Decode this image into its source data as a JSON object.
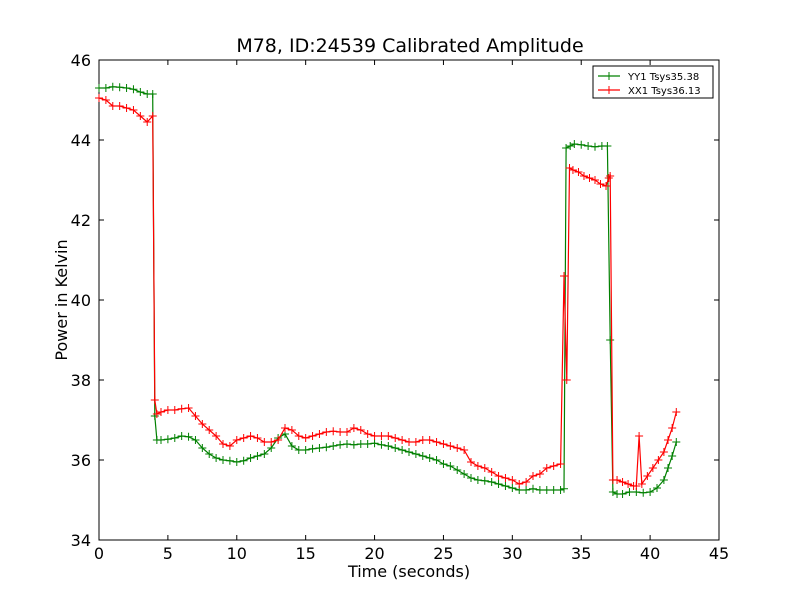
{
  "chart_data": {
    "type": "line",
    "title": "M78, ID:24539 Calibrated Amplitude",
    "xlabel": "Time (seconds)",
    "ylabel": "Power in Kelvin",
    "xlim": [
      0,
      45
    ],
    "ylim": [
      34,
      46
    ],
    "xticks": [
      0,
      5,
      10,
      15,
      20,
      25,
      30,
      35,
      40,
      45
    ],
    "yticks": [
      34,
      36,
      38,
      40,
      42,
      44,
      46
    ],
    "grid": false,
    "legend_position": "top-right",
    "marker": "+",
    "series": [
      {
        "name": "YY1 Tsys35.38",
        "color": "#008000",
        "x": [
          0.0,
          0.5,
          1.0,
          1.5,
          2.0,
          2.5,
          3.0,
          3.5,
          3.9,
          4.05,
          4.2,
          4.5,
          5.0,
          5.5,
          6.0,
          6.5,
          7.0,
          7.5,
          8.0,
          8.5,
          9.0,
          9.5,
          10.0,
          10.5,
          11.0,
          11.5,
          12.0,
          12.5,
          13.0,
          13.5,
          14.0,
          14.5,
          15.0,
          15.5,
          16.0,
          16.5,
          17.0,
          17.5,
          18.0,
          18.5,
          19.0,
          19.5,
          20.0,
          20.5,
          21.0,
          21.5,
          22.0,
          22.5,
          23.0,
          23.5,
          24.0,
          24.5,
          25.0,
          25.5,
          26.0,
          26.5,
          27.0,
          27.5,
          28.0,
          28.5,
          29.0,
          29.5,
          30.0,
          30.5,
          31.0,
          31.5,
          32.0,
          32.5,
          33.0,
          33.5,
          33.75,
          33.9,
          34.2,
          34.5,
          35.0,
          35.5,
          36.0,
          36.5,
          36.9,
          37.1,
          37.3,
          37.6,
          38.0,
          38.5,
          39.0,
          39.5,
          40.0,
          40.5,
          41.0,
          41.3,
          41.6,
          41.9
        ],
        "values": [
          45.3,
          45.3,
          45.33,
          45.32,
          45.3,
          45.27,
          45.2,
          45.15,
          45.15,
          37.1,
          36.5,
          36.5,
          36.52,
          36.55,
          36.6,
          36.58,
          36.5,
          36.3,
          36.15,
          36.05,
          36.0,
          35.98,
          35.95,
          35.98,
          36.05,
          36.1,
          36.15,
          36.3,
          36.55,
          36.65,
          36.35,
          36.25,
          36.25,
          36.28,
          36.3,
          36.32,
          36.35,
          36.38,
          36.4,
          36.38,
          36.4,
          36.4,
          36.42,
          36.38,
          36.35,
          36.3,
          36.25,
          36.2,
          36.15,
          36.1,
          36.05,
          36.0,
          35.9,
          35.85,
          35.75,
          35.65,
          35.55,
          35.5,
          35.48,
          35.45,
          35.4,
          35.35,
          35.3,
          35.25,
          35.25,
          35.28,
          35.25,
          35.25,
          35.25,
          35.25,
          35.28,
          43.8,
          43.85,
          43.9,
          43.88,
          43.85,
          43.83,
          43.85,
          43.85,
          39.0,
          35.2,
          35.15,
          35.15,
          35.2,
          35.2,
          35.18,
          35.2,
          35.3,
          35.5,
          35.8,
          36.1,
          36.45
        ]
      },
      {
        "name": "XX1 Tsys36.13",
        "color": "#ff0000",
        "x": [
          0.0,
          0.5,
          1.0,
          1.5,
          2.0,
          2.5,
          3.0,
          3.5,
          3.9,
          4.05,
          4.2,
          4.5,
          5.0,
          5.5,
          6.0,
          6.5,
          7.0,
          7.5,
          8.0,
          8.5,
          9.0,
          9.5,
          10.0,
          10.5,
          11.0,
          11.5,
          12.0,
          12.5,
          13.0,
          13.5,
          14.0,
          14.5,
          15.0,
          15.5,
          16.0,
          16.5,
          17.0,
          17.5,
          18.0,
          18.5,
          19.0,
          19.5,
          20.0,
          20.5,
          21.0,
          21.5,
          22.0,
          22.5,
          23.0,
          23.5,
          24.0,
          24.5,
          25.0,
          25.5,
          26.0,
          26.5,
          27.0,
          27.5,
          28.0,
          28.5,
          29.0,
          29.5,
          30.0,
          30.5,
          31.0,
          31.5,
          32.0,
          32.5,
          33.0,
          33.5,
          33.75,
          33.95,
          34.15,
          34.4,
          34.8,
          35.2,
          35.6,
          36.0,
          36.4,
          36.8,
          37.0,
          37.1,
          37.3,
          37.6,
          38.0,
          38.4,
          38.8,
          39.0,
          39.2,
          39.4,
          39.8,
          40.2,
          40.6,
          41.0,
          41.3,
          41.6,
          41.9
        ],
        "values": [
          45.05,
          45.0,
          44.85,
          44.85,
          44.8,
          44.75,
          44.6,
          44.45,
          44.6,
          37.5,
          37.15,
          37.2,
          37.25,
          37.25,
          37.28,
          37.3,
          37.1,
          36.9,
          36.75,
          36.6,
          36.4,
          36.35,
          36.5,
          36.55,
          36.6,
          36.55,
          36.45,
          36.45,
          36.5,
          36.8,
          36.75,
          36.6,
          36.55,
          36.6,
          36.65,
          36.7,
          36.72,
          36.7,
          36.7,
          36.8,
          36.75,
          36.65,
          36.6,
          36.6,
          36.6,
          36.55,
          36.5,
          36.45,
          36.45,
          36.5,
          36.5,
          36.45,
          36.4,
          36.35,
          36.3,
          36.25,
          35.95,
          35.85,
          35.8,
          35.7,
          35.6,
          35.55,
          35.5,
          35.4,
          35.45,
          35.6,
          35.65,
          35.8,
          35.85,
          35.9,
          40.6,
          38.0,
          43.3,
          43.25,
          43.2,
          43.1,
          43.05,
          43.0,
          42.9,
          42.85,
          43.05,
          43.1,
          35.5,
          35.5,
          35.45,
          35.4,
          35.35,
          35.35,
          36.6,
          35.4,
          35.6,
          35.8,
          36.0,
          36.2,
          36.5,
          36.8,
          37.2
        ]
      }
    ]
  }
}
